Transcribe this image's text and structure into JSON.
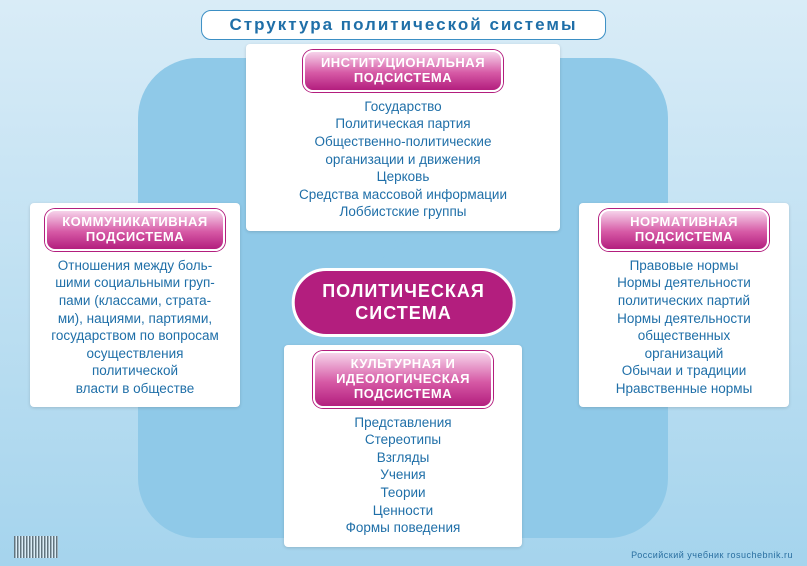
{
  "title": "Структура политической системы",
  "center": "ПОЛИТИЧЕСКАЯ\nСИСТЕМА",
  "colors": {
    "page_bg_top": "#d9ecf7",
    "page_bg_bottom": "#a5d4ed",
    "lobe": "#8fc9e8",
    "accent_text": "#1f6fa8",
    "magenta": "#b31e7e",
    "header_grad_top": "#f6d3ea",
    "header_grad_mid": "#d659a5",
    "white": "#ffffff"
  },
  "cards": {
    "top": {
      "header": "ИНСТИТУЦИОНАЛЬНАЯ\nПОДСИСТЕМА",
      "body": "Государство\nПолитическая партия\nОбщественно-политические\nорганизации и движения\nЦерковь\nСредства массовой информации\nЛоббистские группы"
    },
    "left": {
      "header": "КОММУНИКАТИВНАЯ\nПОДСИСТЕМА",
      "body": "Отношения между боль-\nшими социальными груп-\nпами (классами, страта-\nми), нациями, партиями,\nгосударством по вопросам\nосуществления\nполитической\nвласти в обществе"
    },
    "right": {
      "header": "НОРМАТИВНАЯ\nПОДСИСТЕМА",
      "body": "Правовые нормы\nНормы деятельности\nполитических партий\nНормы деятельности\nобщественных\nорганизаций\nОбычаи и традиции\nНравственные нормы"
    },
    "bottom": {
      "header": "КУЛЬТУРНАЯ И\nИДЕОЛОГИЧЕСКАЯ\nПОДСИСТЕМА",
      "body": "Представления\nСтереотипы\nВзгляды\nУчения\nТеории\nЦенности\nФормы поведения"
    }
  },
  "footer": "Российский учебник   rosuchebnik.ru"
}
